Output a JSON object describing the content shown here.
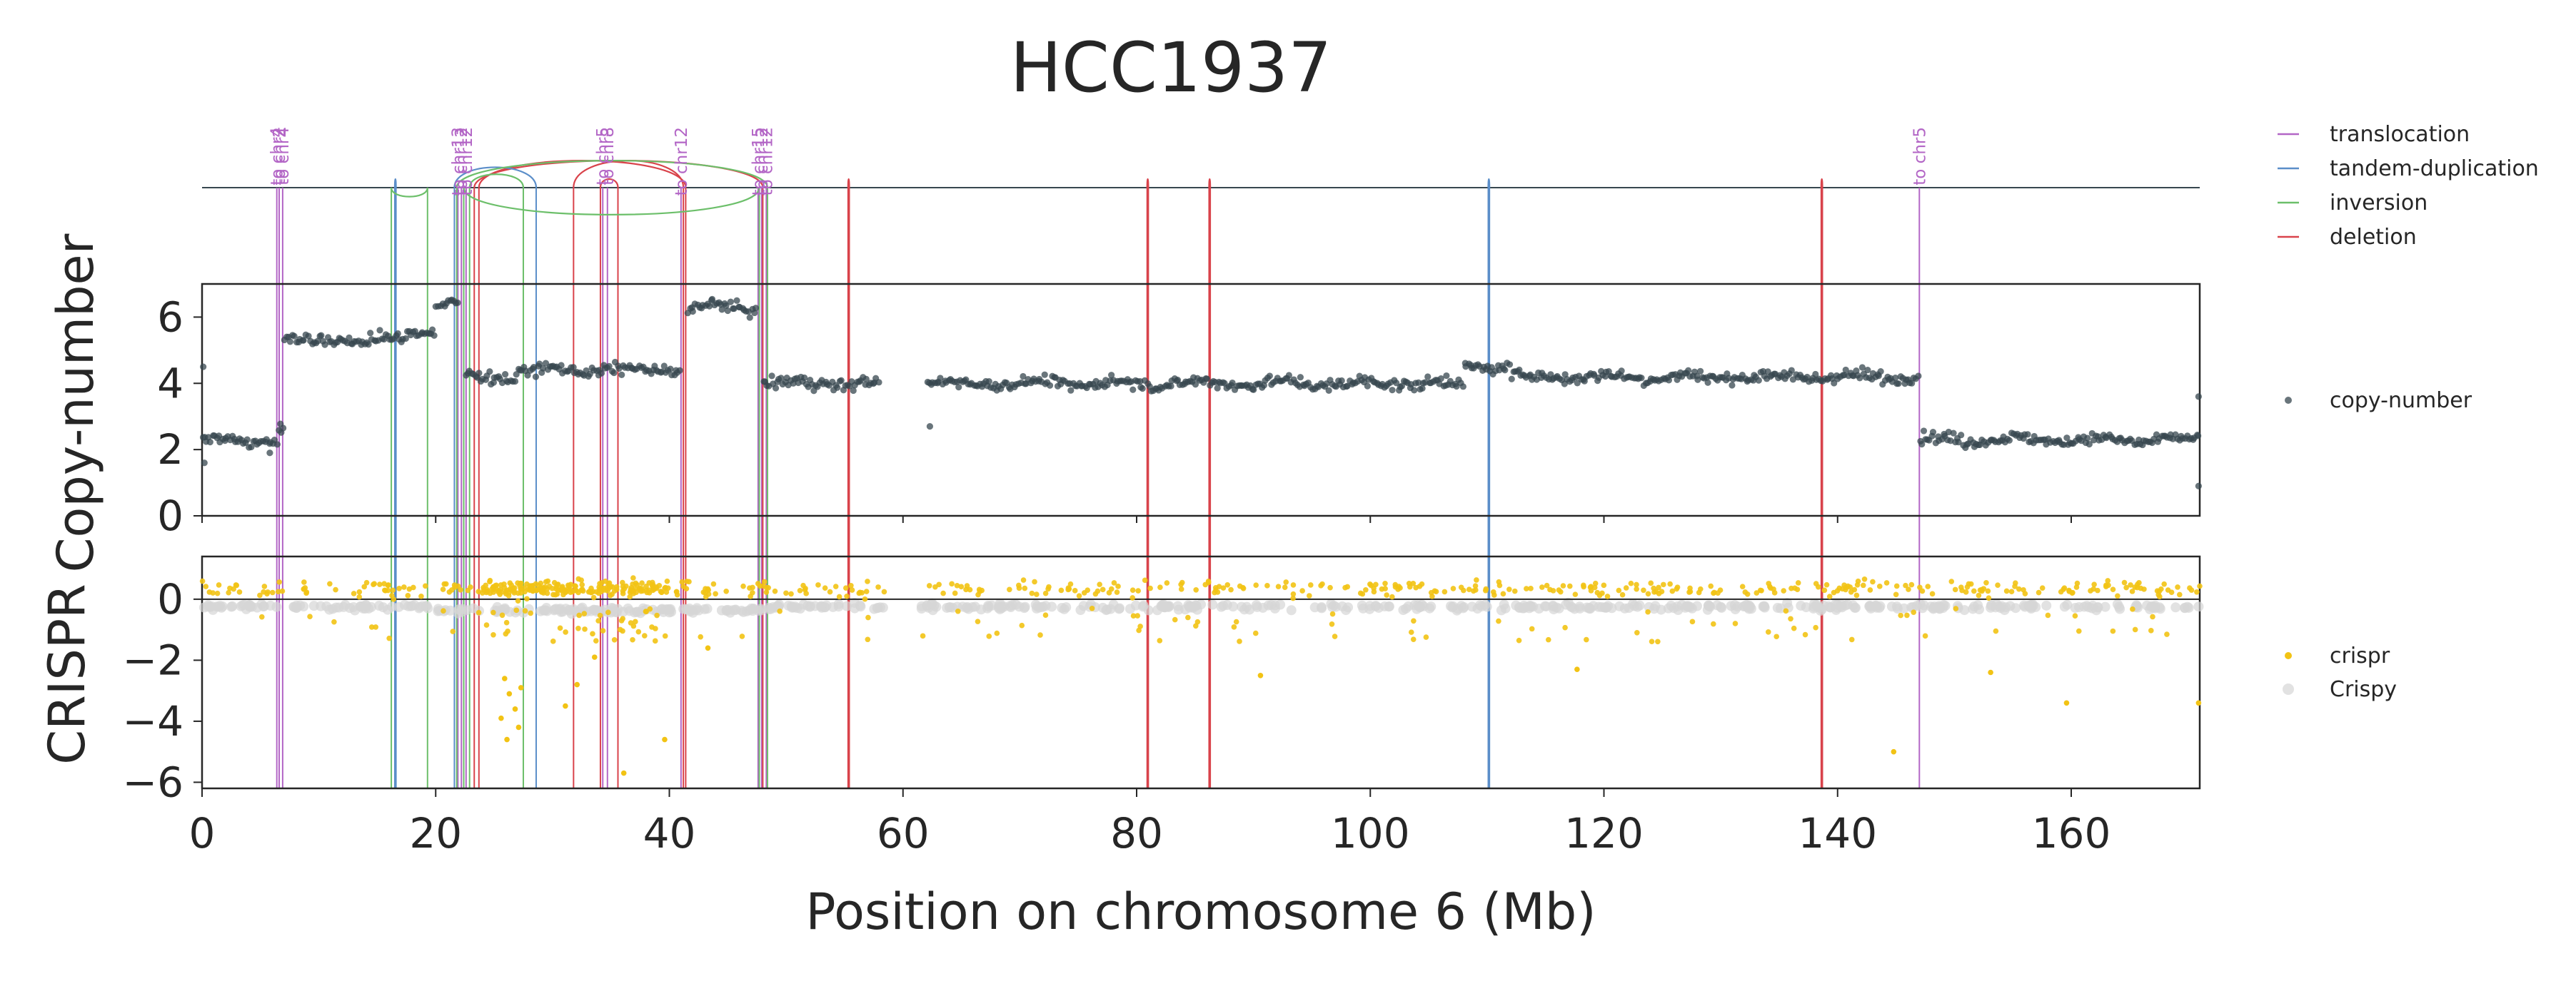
{
  "chart_data": {
    "type": "scatter",
    "title": "HCC1937",
    "xlabel": "Position on chromosome 6 (Mb)",
    "xlim": [
      0,
      171
    ],
    "xticks": [
      "0",
      "20",
      "40",
      "60",
      "80",
      "100",
      "120",
      "140",
      "160"
    ],
    "colors": {
      "translocation": "#b366c6",
      "tandem-duplication": "#5b8ec9",
      "inversion": "#6cbf6a",
      "deletion": "#d9434b",
      "copy-number": "#37474f",
      "crispr": "#f2c314",
      "Crispy": "#d6d6d6"
    },
    "structural_variants": {
      "legend": [
        "translocation",
        "tandem-duplication",
        "inversion",
        "deletion"
      ],
      "translocations": [
        {
          "pos": 6.4,
          "label": "to chr4"
        },
        {
          "pos": 6.6,
          "label": "to chr2"
        },
        {
          "pos": 6.9,
          "label": "to chr4"
        },
        {
          "pos": 21.9,
          "label": "to chr13"
        },
        {
          "pos": 22.2,
          "label": "to chr12"
        },
        {
          "pos": 22.6,
          "label": "to chr12"
        },
        {
          "pos": 34.3,
          "label": "to chr5"
        },
        {
          "pos": 34.7,
          "label": "to chr8"
        },
        {
          "pos": 41.0,
          "label": "to chr12"
        },
        {
          "pos": 47.6,
          "label": "to chr15"
        },
        {
          "pos": 47.9,
          "label": "to chr12"
        },
        {
          "pos": 48.3,
          "label": "to chr12"
        },
        {
          "pos": 147.0,
          "label": "to chr5"
        }
      ],
      "tandem_duplications": [
        [
          16.5,
          16.6
        ],
        [
          21.6,
          28.6
        ],
        [
          110.1,
          110.2
        ]
      ],
      "inversions": [
        [
          16.2,
          19.3
        ],
        [
          21.8,
          48.4
        ],
        [
          22.4,
          47.7
        ],
        [
          22.9,
          27.5
        ]
      ],
      "deletions": [
        [
          23.3,
          48.0
        ],
        [
          23.7,
          41.4
        ],
        [
          31.8,
          41.2
        ],
        [
          34.1,
          35.6
        ],
        [
          55.3,
          55.4
        ],
        [
          80.9,
          81.0
        ],
        [
          86.2,
          86.3
        ],
        [
          138.6,
          138.7
        ]
      ]
    },
    "copy_number": {
      "ylabel": "Copy-number",
      "ylim": [
        0,
        7
      ],
      "yticks": [
        "0",
        "2",
        "4",
        "6"
      ],
      "legend": "copy-number",
      "segments": [
        {
          "start": 0.0,
          "end": 6.5,
          "value": 2.3
        },
        {
          "start": 6.5,
          "end": 7.0,
          "value": 2.6
        },
        {
          "start": 7.0,
          "end": 17.5,
          "value": 5.3
        },
        {
          "start": 17.5,
          "end": 20.0,
          "value": 5.6
        },
        {
          "start": 20.0,
          "end": 22.0,
          "value": 6.4
        },
        {
          "start": 22.5,
          "end": 27.0,
          "value": 4.2
        },
        {
          "start": 27.0,
          "end": 41.0,
          "value": 4.4
        },
        {
          "start": 41.5,
          "end": 47.5,
          "value": 6.3
        },
        {
          "start": 48.0,
          "end": 58.0,
          "value": 4.0
        },
        {
          "start": 62.0,
          "end": 100.0,
          "value": 4.0
        },
        {
          "start": 100.0,
          "end": 108.0,
          "value": 4.0
        },
        {
          "start": 108.0,
          "end": 112.0,
          "value": 4.5
        },
        {
          "start": 112.0,
          "end": 147.0,
          "value": 4.2
        },
        {
          "start": 147.0,
          "end": 171.0,
          "value": 2.3
        }
      ]
    },
    "crispr": {
      "ylabel": "CRISPR",
      "ylim": [
        -6.2,
        1.4
      ],
      "yticks": [
        "0",
        "−2",
        "−4",
        "−6"
      ],
      "legend": [
        "crispr",
        "Crispy"
      ],
      "gaps": [
        [
          58.5,
          61.5
        ]
      ],
      "low_points": [
        [
          25.9,
          -2.6
        ],
        [
          26.3,
          -3.1
        ],
        [
          26.8,
          -3.6
        ],
        [
          27.3,
          -2.9
        ],
        [
          25.6,
          -3.9
        ],
        [
          26.1,
          -4.6
        ],
        [
          27.1,
          -4.2
        ],
        [
          31.1,
          -3.5
        ],
        [
          32.1,
          -2.8
        ],
        [
          33.6,
          -1.9
        ],
        [
          36.1,
          -5.7
        ],
        [
          39.6,
          -4.6
        ],
        [
          43.3,
          -1.6
        ],
        [
          90.6,
          -2.5
        ],
        [
          117.7,
          -2.3
        ],
        [
          144.8,
          -5.0
        ],
        [
          153.1,
          -2.4
        ],
        [
          159.6,
          -3.4
        ],
        [
          170.9,
          -3.4
        ]
      ]
    }
  }
}
